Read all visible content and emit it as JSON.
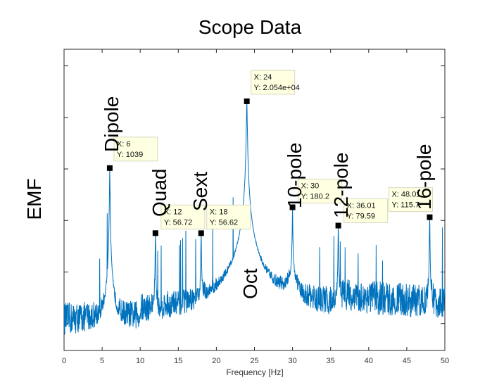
{
  "chart_data": {
    "type": "line",
    "title": "Scope Data",
    "xlabel": "Frequency [Hz]",
    "ylabel": "EMF",
    "xlim": [
      0,
      50
    ],
    "xticks": [
      0,
      5,
      10,
      15,
      20,
      25,
      30,
      35,
      40,
      45,
      50
    ],
    "y_scale": "log",
    "grid": false,
    "series": [
      {
        "color": "#0072BD",
        "peaks": [
          {
            "x": 6,
            "y": 1039
          },
          {
            "x": 12,
            "y": 56.72
          },
          {
            "x": 18,
            "y": 56.62
          },
          {
            "x": 24,
            "y": 20540
          },
          {
            "x": 30,
            "y": 180.2
          },
          {
            "x": 36.01,
            "y": 79.59
          },
          {
            "x": 48.01,
            "y": 115.7
          }
        ]
      }
    ],
    "datatips": [
      {
        "x": 6,
        "y_text": "1039",
        "x_label": "X: 6",
        "y_label": "Y: 1039"
      },
      {
        "x": 12,
        "y_text": "56.72",
        "x_label": "X: 12",
        "y_label": "Y: 56.72"
      },
      {
        "x": 18,
        "y_text": "56.62",
        "x_label": "X: 18",
        "y_label": "Y: 56.62"
      },
      {
        "x": 24,
        "y_text": "2.054e+04",
        "x_label": "X: 24",
        "y_label": "Y: 2.054e+04"
      },
      {
        "x": 30,
        "y_text": "180.2",
        "x_label": "X: 30",
        "y_label": "Y: 180.2"
      },
      {
        "x": 36.01,
        "y_text": "79.59",
        "x_label": "X: 36.01",
        "y_label": "Y: 79.59"
      },
      {
        "x": 48.01,
        "y_text": "115.7",
        "x_label": "X: 48.01",
        "y_label": "Y: 115.7"
      }
    ],
    "annotations": [
      {
        "text": "Dipole",
        "x": 6
      },
      {
        "text": "Quad",
        "x": 12
      },
      {
        "text": "Sext",
        "x": 18
      },
      {
        "text": "Oct",
        "x": 24
      },
      {
        "text": "10-pole",
        "x": 30
      },
      {
        "text": "12-pole",
        "x": 36
      },
      {
        "text": "16-pole",
        "x": 48
      }
    ]
  }
}
